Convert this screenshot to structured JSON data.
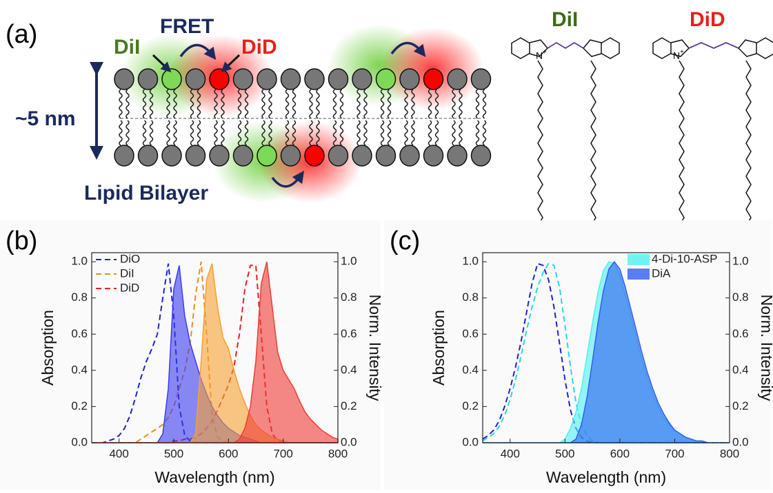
{
  "diagram": {
    "panel_label": "(a)",
    "donor_label": "DiI",
    "fret_label": "FRET",
    "acceptor_label": "DiD",
    "thickness_label": "~5 nm",
    "bilayer_label": "Lipid Bilayer",
    "molecules": [
      {
        "name": "DiI",
        "atom": "N",
        "charge": "+"
      },
      {
        "name": "DiD",
        "atom": "N",
        "charge": "+"
      }
    ]
  },
  "chart_data": [
    {
      "type": "line",
      "panel_label": "(b)",
      "x_label": "Wavelength (nm)",
      "y_label": "Absorption",
      "y2_label": "Norm. Intensity",
      "legend": "upper left",
      "x": [
        350,
        360,
        370,
        380,
        390,
        400,
        410,
        420,
        430,
        440,
        450,
        460,
        470,
        480,
        490,
        500,
        510,
        520,
        530,
        540,
        550,
        560,
        570,
        580,
        590,
        600,
        610,
        620,
        630,
        640,
        650,
        660,
        670,
        680,
        690,
        700,
        710,
        720,
        730,
        740,
        750,
        760,
        770,
        780,
        790,
        800
      ],
      "xlim": [
        350,
        800
      ],
      "xticks": [
        400,
        500,
        600,
        700,
        800
      ],
      "ylim": [
        0,
        1.05
      ],
      "yticks": [
        {
          "value": 0,
          "label": "0.0"
        },
        {
          "value": 0.2,
          "label": "0.2"
        },
        {
          "value": 0.4,
          "label": "0.4"
        },
        {
          "value": 0.6,
          "label": "0.6"
        },
        {
          "value": 0.8,
          "label": "0.8"
        },
        {
          "value": 1,
          "label": "1.0"
        }
      ],
      "y2lim": [
        0,
        1.05
      ],
      "y2ticks": [
        {
          "value": 0,
          "label": "0.0"
        },
        {
          "value": 0.2,
          "label": "0.2"
        },
        {
          "value": 0.4,
          "label": "0.4"
        },
        {
          "value": 0.6,
          "label": "0.6"
        },
        {
          "value": 0.8,
          "label": "0.8"
        },
        {
          "value": 1,
          "label": "1.0"
        }
      ],
      "series": [
        {
          "name": "DiO",
          "color": "#1f1fd6",
          "style": "dashed",
          "values": [
            0,
            0,
            0,
            0.01,
            0.02,
            0.04,
            0.08,
            0.15,
            0.25,
            0.36,
            0.45,
            0.52,
            0.6,
            0.8,
            0.99,
            0.7,
            0.2,
            0.04,
            0.01,
            0,
            0,
            0,
            0,
            0,
            0,
            0,
            0,
            0,
            0,
            0,
            0,
            0,
            0,
            0,
            0,
            0,
            0,
            0,
            0,
            0,
            0,
            0,
            0,
            0,
            0,
            0
          ]
        },
        {
          "name": "DiI",
          "color": "#f08a1c",
          "style": "dashed",
          "values": [
            0,
            0,
            0,
            0,
            0,
            0,
            0,
            0,
            0,
            0.02,
            0.04,
            0.06,
            0.08,
            0.1,
            0.14,
            0.2,
            0.3,
            0.4,
            0.55,
            0.82,
            1.0,
            0.6,
            0.15,
            0.03,
            0.01,
            0,
            0,
            0,
            0,
            0,
            0,
            0,
            0,
            0,
            0,
            0,
            0,
            0,
            0,
            0,
            0,
            0,
            0,
            0,
            0,
            0
          ]
        },
        {
          "name": "DiD",
          "color": "#e8201c",
          "style": "dashed",
          "values": [
            0,
            0,
            0,
            0,
            0,
            0,
            0,
            0,
            0,
            0,
            0,
            0,
            0,
            0,
            0,
            0.01,
            0.01,
            0.02,
            0.02,
            0.03,
            0.05,
            0.08,
            0.12,
            0.18,
            0.25,
            0.32,
            0.42,
            0.6,
            0.85,
            0.98,
            0.98,
            0.6,
            0.2,
            0.05,
            0.01,
            0,
            0,
            0,
            0,
            0,
            0,
            0,
            0,
            0,
            0,
            0
          ]
        },
        {
          "color": "#3a3af0",
          "style": "area",
          "axis": "y2",
          "values": [
            0,
            0,
            0,
            0,
            0,
            0,
            0,
            0,
            0,
            0,
            0,
            0,
            0,
            0.05,
            0.3,
            0.85,
            0.98,
            0.7,
            0.55,
            0.45,
            0.35,
            0.27,
            0.2,
            0.15,
            0.11,
            0.08,
            0.06,
            0.04,
            0.03,
            0.02,
            0.01,
            0,
            0,
            0,
            0,
            0,
            0,
            0,
            0,
            0,
            0,
            0,
            0,
            0,
            0,
            0
          ]
        },
        {
          "color": "#f5a030",
          "style": "area",
          "axis": "y2",
          "values": [
            0,
            0,
            0,
            0,
            0,
            0,
            0,
            0,
            0,
            0,
            0,
            0,
            0,
            0,
            0,
            0,
            0,
            0,
            0,
            0.05,
            0.45,
            0.9,
            0.99,
            0.75,
            0.58,
            0.52,
            0.4,
            0.3,
            0.22,
            0.15,
            0.1,
            0.07,
            0.05,
            0.03,
            0.02,
            0.01,
            0,
            0,
            0,
            0,
            0,
            0,
            0,
            0,
            0,
            0
          ]
        },
        {
          "color": "#f03a36",
          "style": "area",
          "axis": "y2",
          "values": [
            0,
            0,
            0,
            0,
            0,
            0,
            0,
            0,
            0,
            0,
            0,
            0,
            0,
            0,
            0,
            0,
            0,
            0,
            0,
            0,
            0,
            0,
            0,
            0,
            0,
            0,
            0,
            0.02,
            0.08,
            0.2,
            0.45,
            0.88,
            1.0,
            0.75,
            0.5,
            0.4,
            0.35,
            0.3,
            0.23,
            0.17,
            0.13,
            0.1,
            0.07,
            0.05,
            0.03,
            0.02
          ]
        }
      ]
    },
    {
      "type": "line",
      "panel_label": "(c)",
      "x_label": "Wavelength (nm)",
      "y_label": "Absorption",
      "y2_label": "Norm. Intensity",
      "legend": "upper right",
      "x": [
        350,
        360,
        370,
        380,
        390,
        400,
        410,
        420,
        430,
        440,
        450,
        460,
        470,
        480,
        490,
        500,
        510,
        520,
        530,
        540,
        550,
        560,
        570,
        580,
        590,
        600,
        610,
        620,
        630,
        640,
        650,
        660,
        670,
        680,
        690,
        700,
        710,
        720,
        730,
        740,
        750,
        760,
        770,
        780,
        790,
        800
      ],
      "xlim": [
        350,
        800
      ],
      "xticks": [
        400,
        500,
        600,
        700,
        800
      ],
      "ylim": [
        0,
        1.05
      ],
      "yticks": [
        {
          "value": 0,
          "label": "0.0"
        },
        {
          "value": 0.2,
          "label": "0.2"
        },
        {
          "value": 0.4,
          "label": "0.4"
        },
        {
          "value": 0.6,
          "label": "0.6"
        },
        {
          "value": 0.8,
          "label": "0.8"
        },
        {
          "value": 1,
          "label": "1.0"
        }
      ],
      "y2lim": [
        0,
        1.05
      ],
      "y2ticks": [
        {
          "value": 0,
          "label": "0.0"
        },
        {
          "value": 0.2,
          "label": "0.2"
        },
        {
          "value": 0.4,
          "label": "0.4"
        },
        {
          "value": 0.6,
          "label": "0.6"
        },
        {
          "value": 0.8,
          "label": "0.8"
        },
        {
          "value": 1,
          "label": "1.0"
        }
      ],
      "series": [
        {
          "color": "#1f1fd6",
          "style": "dashed",
          "values": [
            0.02,
            0.04,
            0.07,
            0.12,
            0.2,
            0.3,
            0.42,
            0.56,
            0.72,
            0.88,
            0.99,
            0.98,
            0.9,
            0.75,
            0.55,
            0.35,
            0.18,
            0.08,
            0.03,
            0.01,
            0,
            0,
            0,
            0,
            0,
            0,
            0,
            0,
            0,
            0,
            0,
            0,
            0,
            0,
            0,
            0,
            0,
            0,
            0,
            0,
            0,
            0,
            0,
            0,
            0,
            0
          ]
        },
        {
          "color": "#22d8e8",
          "style": "dashed",
          "values": [
            0.01,
            0.03,
            0.05,
            0.09,
            0.15,
            0.24,
            0.35,
            0.48,
            0.62,
            0.75,
            0.86,
            0.94,
            0.99,
            0.98,
            0.86,
            0.65,
            0.42,
            0.22,
            0.1,
            0.04,
            0.01,
            0,
            0,
            0,
            0,
            0,
            0,
            0,
            0,
            0,
            0,
            0,
            0,
            0,
            0,
            0,
            0,
            0,
            0,
            0,
            0,
            0,
            0,
            0,
            0,
            0
          ]
        },
        {
          "name": "4-Di-10-ASP",
          "color": "#4ff0f0",
          "style": "area",
          "axis": "y2",
          "values": [
            0,
            0,
            0,
            0,
            0,
            0,
            0,
            0,
            0,
            0,
            0,
            0,
            0,
            0,
            0,
            0.02,
            0.08,
            0.17,
            0.3,
            0.48,
            0.66,
            0.83,
            0.95,
            1.0,
            0.99,
            0.93,
            0.82,
            0.7,
            0.58,
            0.46,
            0.36,
            0.27,
            0.2,
            0.14,
            0.1,
            0.07,
            0.05,
            0.03,
            0.02,
            0.01,
            0.01,
            0,
            0,
            0,
            0,
            0
          ]
        },
        {
          "name": "DiA",
          "color": "#2f5ff0",
          "style": "area",
          "axis": "y2",
          "values": [
            0,
            0,
            0,
            0,
            0,
            0,
            0,
            0,
            0,
            0,
            0,
            0,
            0,
            0,
            0,
            0,
            0,
            0.02,
            0.1,
            0.25,
            0.45,
            0.66,
            0.84,
            0.96,
            1.0,
            0.96,
            0.86,
            0.74,
            0.62,
            0.5,
            0.39,
            0.3,
            0.22,
            0.16,
            0.11,
            0.07,
            0.05,
            0.03,
            0.02,
            0.01,
            0.01,
            0,
            0,
            0,
            0,
            0
          ]
        }
      ]
    }
  ]
}
